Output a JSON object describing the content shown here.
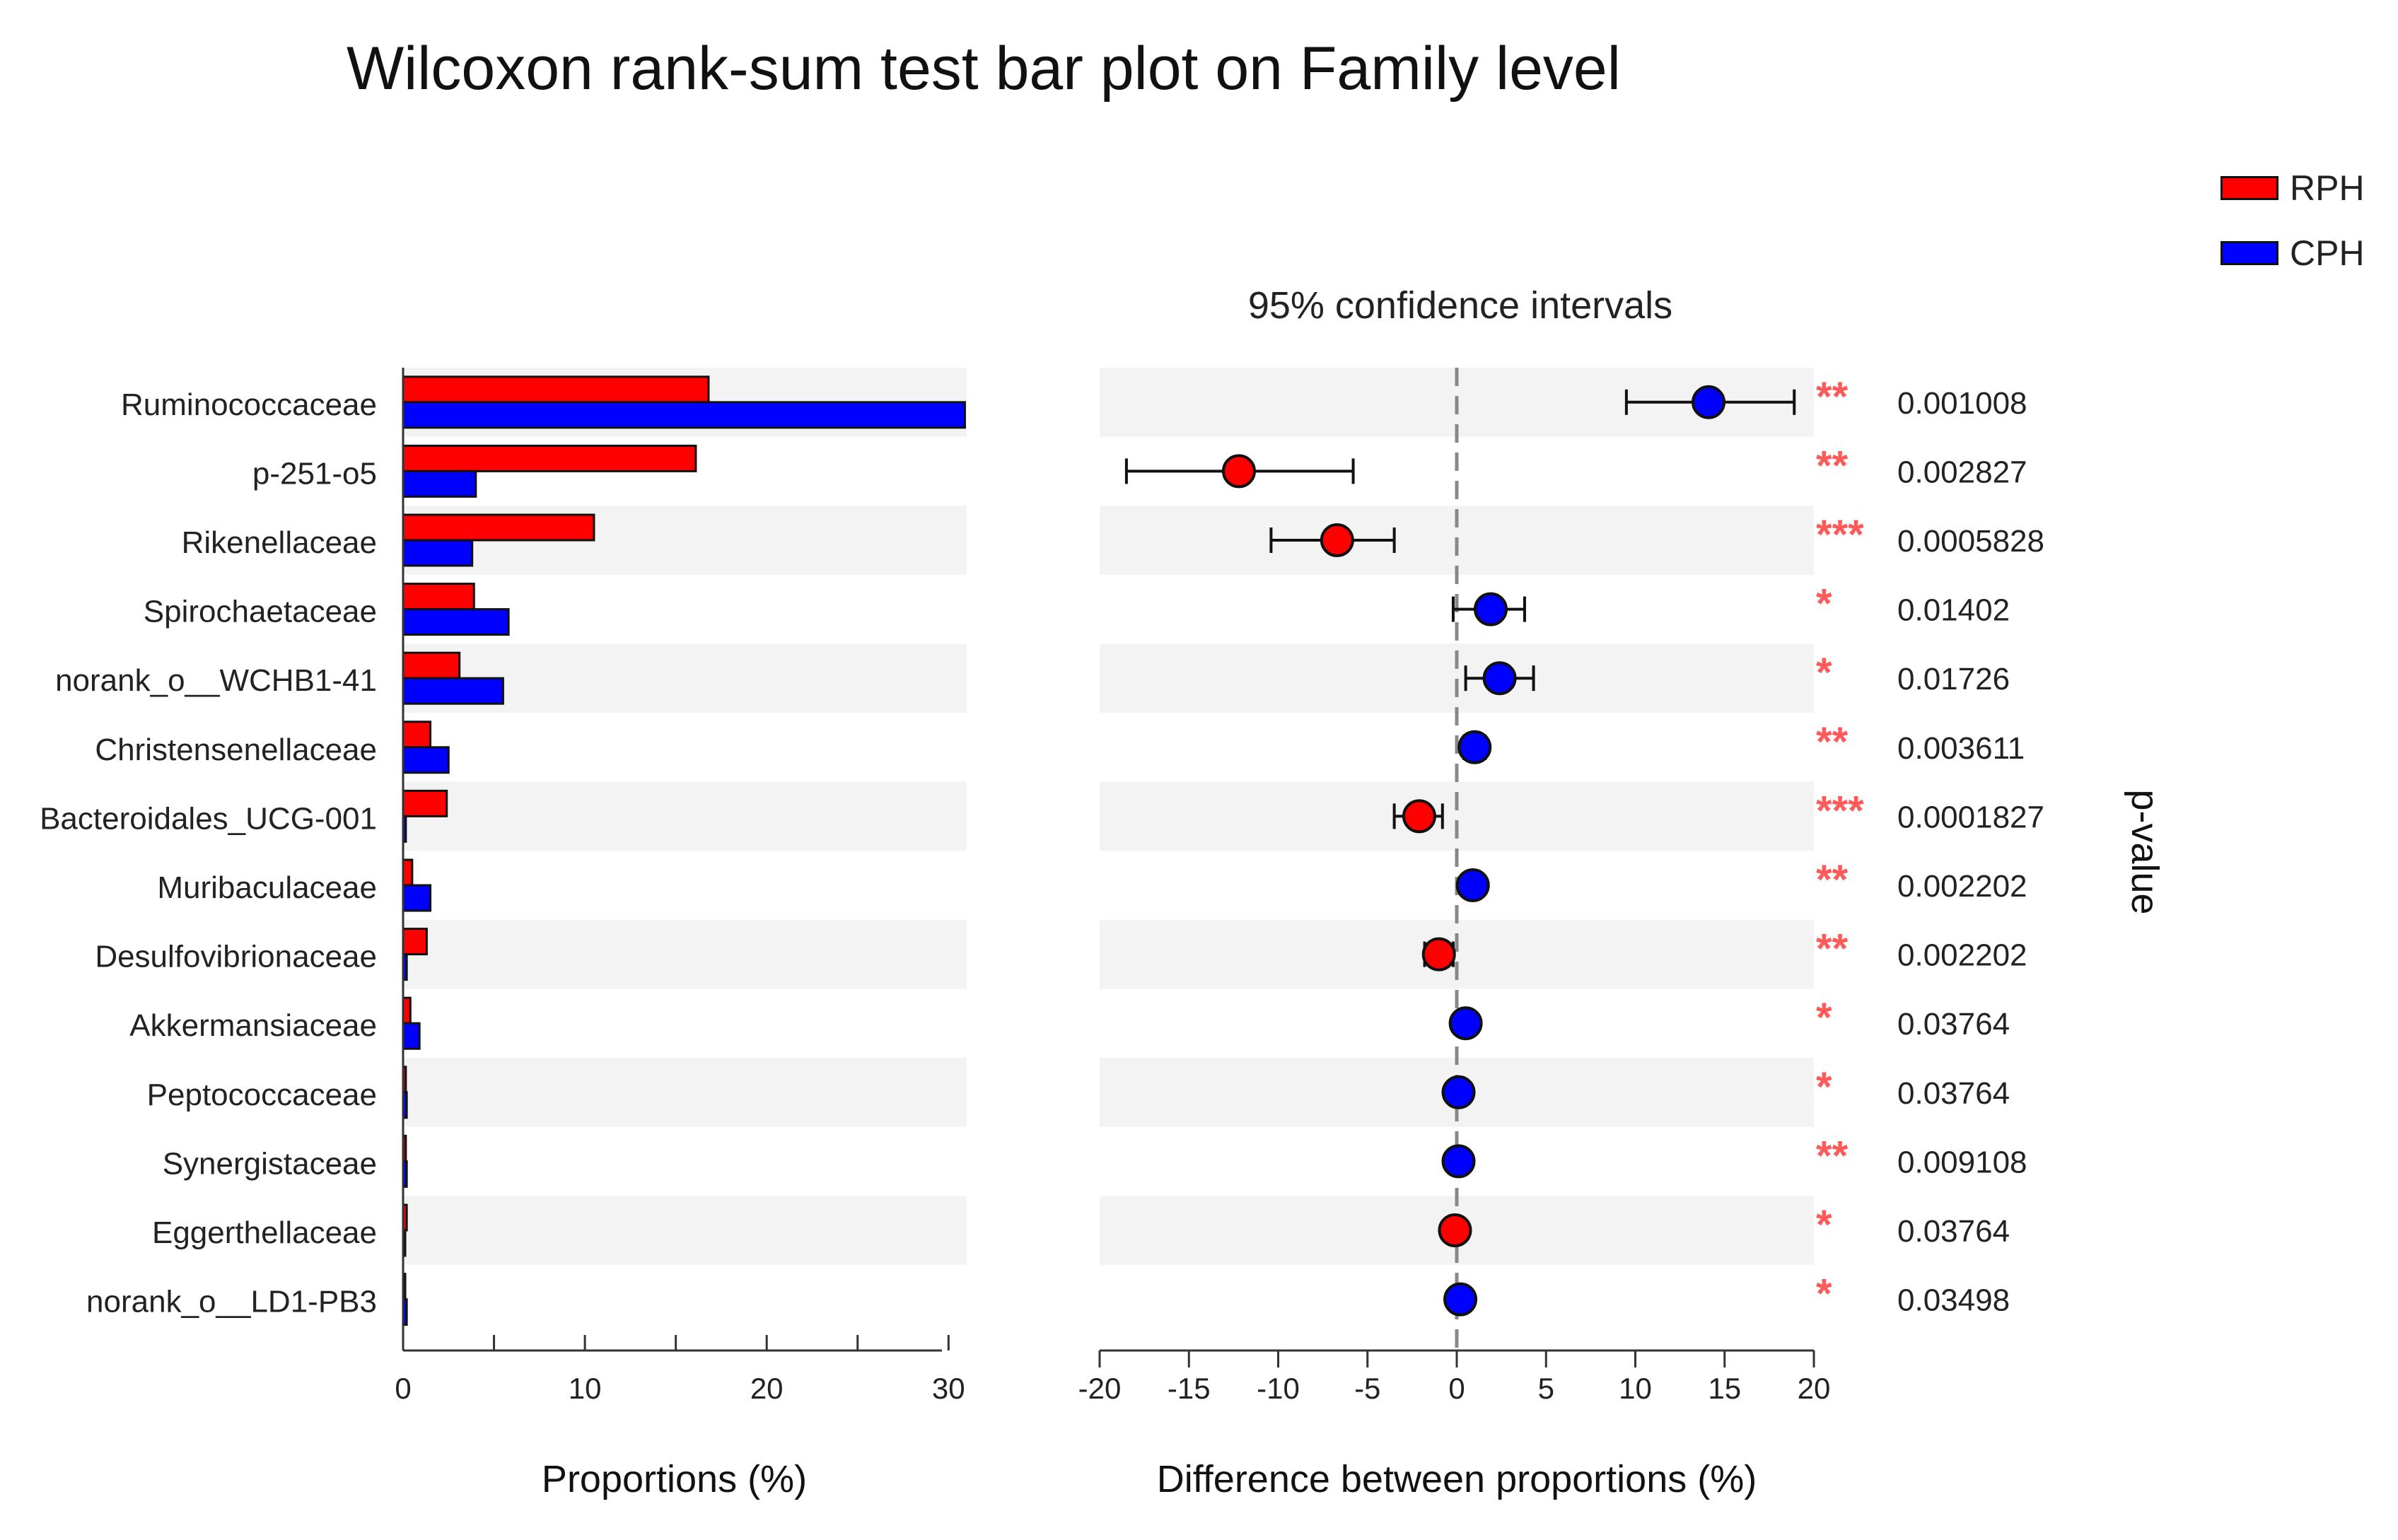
{
  "title": "Wilcoxon rank-sum test bar plot on Family level",
  "legend": [
    {
      "label": "RPH",
      "color": "#ff0000"
    },
    {
      "label": "CPH",
      "color": "#0000ff"
    }
  ],
  "chart_data": [
    {
      "type": "bar",
      "orientation": "horizontal",
      "xlabel": "Proportions (%)",
      "xlim": [
        0,
        31
      ],
      "xticks": [
        0,
        10,
        20,
        30
      ],
      "categories": [
        "Ruminococcaceae",
        "p-251-o5",
        "Rikenellaceae",
        "Spirochaetaceae",
        "norank_o__WCHB1-41",
        "Christensenellaceae",
        "Bacteroidales_UCG-001",
        "Muribaculaceae",
        "Desulfovibrionaceae",
        "Akkermansiaceae",
        "Peptococcaceae",
        "Synergistaceae",
        "Eggerthellaceae",
        "norank_o__LD1-PB3"
      ],
      "series": [
        {
          "name": "RPH",
          "color": "#ff0000",
          "values": [
            16.8,
            16.1,
            10.5,
            3.9,
            3.1,
            1.5,
            2.4,
            0.5,
            1.3,
            0.4,
            0.15,
            0.15,
            0.2,
            0.05
          ]
        },
        {
          "name": "CPH",
          "color": "#0000ff",
          "values": [
            30.9,
            4.0,
            3.8,
            5.8,
            5.5,
            2.5,
            0.15,
            1.5,
            0.2,
            0.9,
            0.2,
            0.2,
            0.05,
            0.2
          ]
        }
      ]
    },
    {
      "type": "scatter",
      "title": "95% confidence intervals",
      "xlabel": "Difference between proportions (%)",
      "xlim": [
        -20,
        20
      ],
      "xticks": [
        -20,
        -15,
        -10,
        -5,
        0,
        5,
        10,
        15,
        20
      ],
      "categories": [
        "Ruminococcaceae",
        "p-251-o5",
        "Rikenellaceae",
        "Spirochaetaceae",
        "norank_o__WCHB1-41",
        "Christensenellaceae",
        "Bacteroidales_UCG-001",
        "Muribaculaceae",
        "Desulfovibrionaceae",
        "Akkermansiaceae",
        "Peptococcaceae",
        "Synergistaceae",
        "Eggerthellaceae",
        "norank_o__LD1-PB3"
      ],
      "estimates": [
        14.1,
        -12.2,
        -6.7,
        1.9,
        2.4,
        1.0,
        -2.1,
        0.9,
        -1.0,
        0.5,
        0.1,
        0.1,
        -0.1,
        0.2
      ],
      "ci_low": [
        9.5,
        -18.5,
        -10.4,
        -0.2,
        0.5,
        0.4,
        -3.5,
        0.4,
        -1.8,
        0.1,
        0.0,
        0.0,
        -0.3,
        0.0
      ],
      "ci_high": [
        18.9,
        -5.8,
        -3.5,
        3.8,
        4.3,
        1.6,
        -0.8,
        1.4,
        -0.2,
        1.0,
        0.2,
        0.2,
        0.1,
        0.4
      ],
      "colors": [
        "#0000ff",
        "#ff0000",
        "#ff0000",
        "#0000ff",
        "#0000ff",
        "#0000ff",
        "#ff0000",
        "#0000ff",
        "#ff0000",
        "#0000ff",
        "#0000ff",
        "#0000ff",
        "#ff0000",
        "#0000ff"
      ],
      "significance": [
        "**",
        "**",
        "***",
        "*",
        "*",
        "**",
        "***",
        "**",
        "**",
        "*",
        "*",
        "**",
        "*",
        "*"
      ],
      "p_values": [
        "0.001008",
        "0.002827",
        "0.0005828",
        "0.01402",
        "0.01726",
        "0.003611",
        "0.0001827",
        "0.002202",
        "0.002202",
        "0.03764",
        "0.03764",
        "0.009108",
        "0.03764",
        "0.03498"
      ],
      "p_label": "p-value"
    }
  ]
}
